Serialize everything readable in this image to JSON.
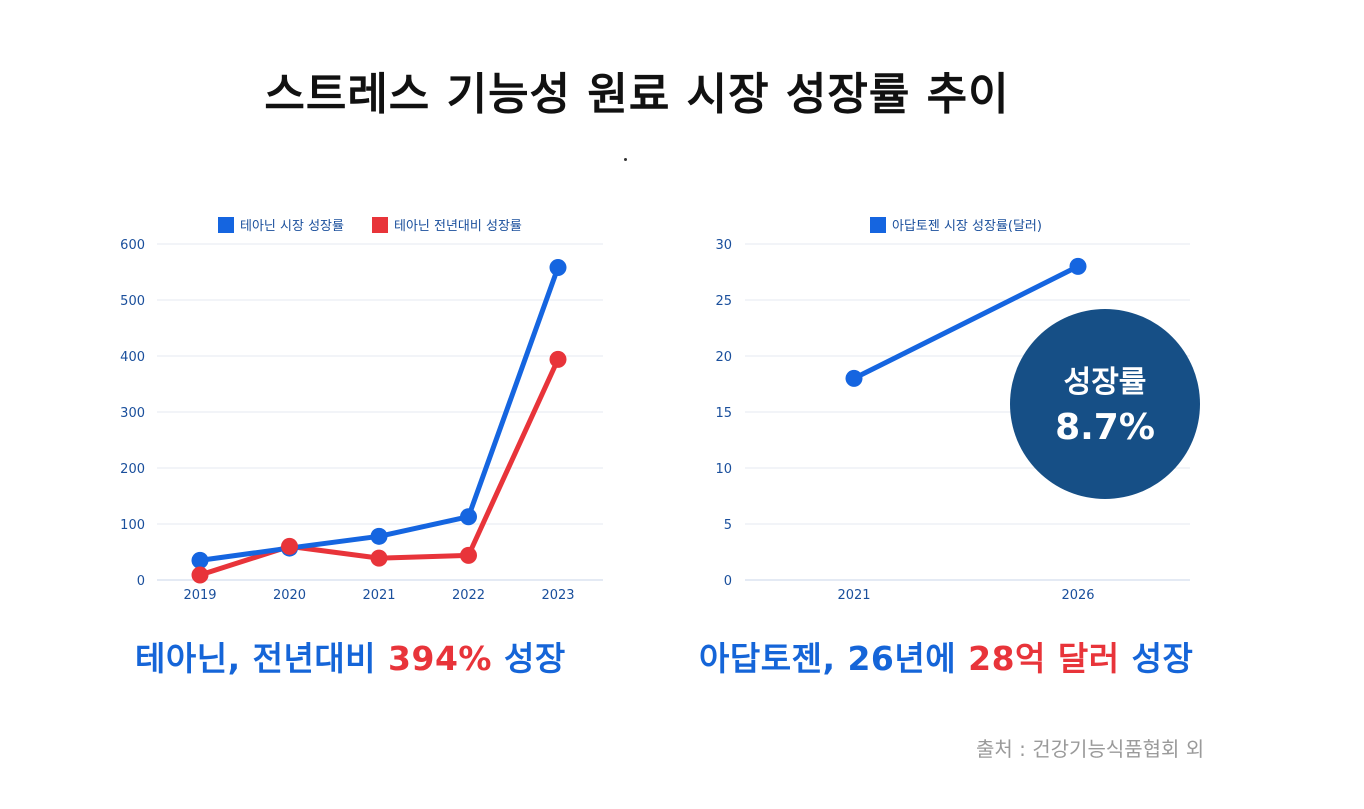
{
  "title": "스트레스 기능성 원료 시장 성장률 추이",
  "colors": {
    "blue": "#1565e0",
    "red": "#e8343a",
    "navy": "#164f86",
    "grid": "#e6eaf0",
    "axis": "#1a4f9c"
  },
  "chart_data": [
    {
      "type": "line",
      "categories": [
        "2019",
        "2020",
        "2021",
        "2022",
        "2023"
      ],
      "series": [
        {
          "name": "테아닌 시장 성장률",
          "color": "#1565e0",
          "values": [
            35,
            57,
            78,
            113,
            558
          ]
        },
        {
          "name": "테아닌 전년대비 성장률",
          "color": "#e8343a",
          "values": [
            9,
            60,
            39,
            44,
            394
          ]
        }
      ],
      "ylim": [
        0,
        600
      ],
      "yticks": [
        "0",
        "100",
        "200",
        "300",
        "400",
        "500",
        "600"
      ],
      "grid": true,
      "legend": "top-center"
    },
    {
      "type": "line",
      "categories": [
        "2021",
        "2026"
      ],
      "series": [
        {
          "name": "아답토젠 시장 성장률(달러)",
          "color": "#1565e0",
          "values": [
            18,
            28
          ]
        }
      ],
      "ylim": [
        0,
        30
      ],
      "yticks": [
        "0",
        "5",
        "10",
        "15",
        "20",
        "25",
        "30"
      ],
      "grid": true,
      "legend": "top-center"
    }
  ],
  "badge": {
    "label": "성장률",
    "value": "8.7%"
  },
  "caption_left": {
    "part1": "테아닌, 전년대비 ",
    "highlight": "394%",
    "part2": " 성장"
  },
  "caption_right": {
    "part1": "아답토젠, 26년에 ",
    "highlight": "28억 달러",
    "part2": " 성장"
  },
  "source": "출처 : 건강기능식품협회 외"
}
